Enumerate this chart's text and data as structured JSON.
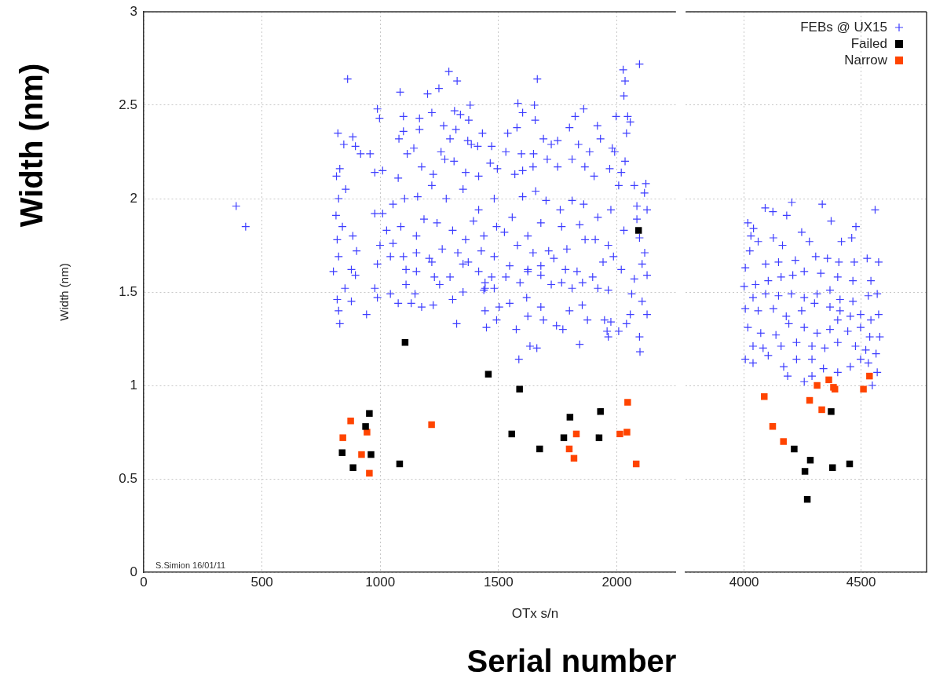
{
  "chart_data": [
    {
      "type": "scatter",
      "xlabel": "OTx s/n",
      "ylabel": "Width (nm)",
      "annotations": [
        "S.Simion 16/01/11",
        "Width (nm)",
        "Serial number"
      ],
      "xlim": [
        0,
        2250
      ],
      "ylim": [
        0,
        3
      ],
      "xticks": [
        0,
        500,
        1000,
        1500,
        2000
      ],
      "yticks": [
        0,
        0.5,
        1,
        1.5,
        2,
        2.5,
        3
      ],
      "grid": true,
      "series": [
        {
          "color": "#3d3dff",
          "marker": "cross",
          "x": [
            391,
            431,
            862,
            1084,
            1200,
            1248,
            1290,
            1325,
            1664,
            2027,
            2096,
            2035,
            2030,
            1860,
            1582,
            1652,
            1380,
            988,
            997,
            821,
            884,
            846,
            895,
            917,
            957,
            1098,
            1166,
            1218,
            1314,
            1339,
            1374,
            1268,
            1320,
            1098,
            1079,
            1166,
            1295,
            1370,
            1432,
            1539,
            1578,
            1602,
            1655,
            1824,
            1800,
            1918,
            1997,
            2046,
            2057,
            2041,
            1931,
            1690,
            1723,
            1750,
            1838,
            1981,
            1991,
            1885,
            1648,
            1597,
            1531,
            1471,
            1412,
            1385,
            1257,
            1142,
            1114,
            829,
            815,
            854,
            824,
            977,
            1010,
            1076,
            1175,
            1224,
            1273,
            1312,
            1361,
            1416,
            1465,
            1495,
            1569,
            1602,
            1646,
            1706,
            1750,
            1811,
            1865,
            1904,
            1970,
            2035,
            2019,
            2008,
            2074,
            2123,
            2117,
            2128,
            2085,
            813,
            840,
            818,
            884,
            900,
            824,
            802,
            878,
            895,
            851,
            818,
            878,
            824,
            829,
            942,
            977,
            1010,
            1054,
            1103,
            1158,
            1218,
            1279,
            1350,
            1416,
            1482,
            1027,
            1087,
            1153,
            1185,
            1240,
            1306,
            1361,
            1394,
            1438,
            1492,
            1525,
            1558,
            1602,
            1657,
            1701,
            1761,
            1811,
            1860,
            1920,
            1975,
            1843,
            1767,
            1679,
            1624,
            1580,
            1646,
            1712,
            1789,
            1866,
            1909,
            1964,
            2030,
            2085,
            2096,
            2118,
            2107,
            2128,
            2074,
            2019,
            1986,
            1942,
            1898,
            1832,
            1783,
            1734,
            1679,
            1624,
            1547,
            1482,
            1427,
            1372,
            1328,
            1262,
            1207,
            1153,
            1098,
            1043,
            988,
            999,
            1054,
            1109,
            1153,
            1218,
            1229,
            1295,
            1350,
            1416,
            1443,
            1471,
            1438,
            1482,
            1531,
            1591,
            1624,
            1679,
            1723,
            1767,
            1811,
            1855,
            1920,
            1964,
            2063,
            2107,
            2128,
            2096,
            2098,
            2057,
            2041,
            2008,
            1975,
            1964,
            1959,
            1948,
            1876,
            1843,
            1854,
            1800,
            1772,
            1745,
            1679,
            1690,
            1662,
            1633,
            1624,
            1619,
            1575,
            1586,
            1547,
            1503,
            1492,
            1449,
            1443,
            1443,
            1350,
            1306,
            1323,
            1224,
            1175,
            1131,
            1076,
            1043,
            988,
            977,
            1147,
            1251,
            1109
          ],
          "values": [
            1.96,
            1.85,
            2.64,
            2.57,
            2.56,
            2.59,
            2.68,
            2.63,
            2.64,
            2.69,
            2.72,
            2.63,
            2.55,
            2.48,
            2.51,
            2.5,
            2.5,
            2.48,
            2.43,
            2.35,
            2.33,
            2.29,
            2.28,
            2.24,
            2.24,
            2.44,
            2.43,
            2.46,
            2.47,
            2.45,
            2.42,
            2.39,
            2.37,
            2.36,
            2.32,
            2.37,
            2.32,
            2.31,
            2.35,
            2.35,
            2.38,
            2.46,
            2.42,
            2.44,
            2.38,
            2.39,
            2.44,
            2.44,
            2.41,
            2.35,
            2.32,
            2.32,
            2.29,
            2.31,
            2.29,
            2.27,
            2.25,
            2.25,
            2.24,
            2.24,
            2.25,
            2.28,
            2.28,
            2.29,
            2.25,
            2.27,
            2.24,
            2.16,
            2.12,
            2.05,
            2,
            2.14,
            2.15,
            2.11,
            2.17,
            2.13,
            2.21,
            2.2,
            2.14,
            2.12,
            2.19,
            2.16,
            2.13,
            2.15,
            2.17,
            2.21,
            2.17,
            2.21,
            2.17,
            2.12,
            2.16,
            2.2,
            2.14,
            2.07,
            2.07,
            2.08,
            2.03,
            1.94,
            1.96,
            1.91,
            1.85,
            1.78,
            1.8,
            1.72,
            1.69,
            1.61,
            1.62,
            1.59,
            1.52,
            1.46,
            1.45,
            1.4,
            1.33,
            1.38,
            1.92,
            1.92,
            1.97,
            2,
            2.01,
            2.07,
            2,
            2.05,
            1.94,
            2,
            1.83,
            1.85,
            1.8,
            1.89,
            1.87,
            1.83,
            1.78,
            1.88,
            1.8,
            1.85,
            1.82,
            1.9,
            2.01,
            2.04,
            1.99,
            1.94,
            1.99,
            1.97,
            1.9,
            1.94,
            1.86,
            1.85,
            1.87,
            1.8,
            1.75,
            1.71,
            1.72,
            1.73,
            1.78,
            1.78,
            1.75,
            1.83,
            1.89,
            1.79,
            1.71,
            1.65,
            1.59,
            1.57,
            1.62,
            1.69,
            1.66,
            1.58,
            1.61,
            1.62,
            1.68,
            1.64,
            1.61,
            1.64,
            1.69,
            1.72,
            1.66,
            1.71,
            1.73,
            1.68,
            1.71,
            1.69,
            1.69,
            1.65,
            1.75,
            1.76,
            1.62,
            1.61,
            1.66,
            1.58,
            1.58,
            1.65,
            1.61,
            1.55,
            1.58,
            1.51,
            1.52,
            1.58,
            1.55,
            1.62,
            1.59,
            1.54,
            1.55,
            1.52,
            1.55,
            1.52,
            1.51,
            1.49,
            1.45,
            1.38,
            1.26,
            1.18,
            1.38,
            1.33,
            1.29,
            1.34,
            1.26,
            1.29,
            1.35,
            1.35,
            1.22,
            1.43,
            1.4,
            1.3,
            1.32,
            1.42,
            1.35,
            1.2,
            1.21,
            1.37,
            1.47,
            1.3,
            1.14,
            1.44,
            1.42,
            1.35,
            1.31,
            1.4,
            1.52,
            1.5,
            1.46,
            1.33,
            1.43,
            1.42,
            1.44,
            1.44,
            1.49,
            1.47,
            1.52,
            1.49,
            1.54,
            1.54
          ]
        },
        {
          "color": "#000000",
          "marker": "square",
          "x": [
            1105,
            1457,
            1589,
            954,
            938,
            839,
            961,
            885,
            1082,
            1556,
            1674,
            1776,
            1802,
            1931,
            1925,
            2092
          ],
          "values": [
            1.23,
            1.06,
            0.98,
            0.85,
            0.78,
            0.64,
            0.63,
            0.56,
            0.58,
            0.74,
            0.66,
            0.72,
            0.83,
            0.86,
            0.72,
            1.83
          ]
        },
        {
          "color": "#ff4400",
          "marker": "square",
          "x": [
            875,
            842,
            944,
            921,
            954,
            1217,
            1829,
            1799,
            1819,
            2046,
            2013,
            2043,
            2082
          ],
          "values": [
            0.81,
            0.72,
            0.75,
            0.63,
            0.53,
            0.79,
            0.74,
            0.66,
            0.61,
            0.91,
            0.74,
            0.75,
            0.58
          ]
        }
      ]
    },
    {
      "type": "scatter",
      "xlim": [
        3750,
        4780
      ],
      "ylim": [
        0,
        3
      ],
      "xticks": [
        4000,
        4500
      ],
      "yticks": [
        0,
        0.5,
        1,
        1.5,
        2,
        2.5,
        3
      ],
      "grid": true,
      "tick_labels": "x",
      "legend": "top right",
      "series": [
        {
          "name": "FEBs @ UX15",
          "color": "#3d3dff",
          "marker": "cross",
          "x": [
            4090,
            4123,
            4182,
            4204,
            4334,
            4560,
            4016,
            4040,
            4029,
            4060,
            4125,
            4164,
            4246,
            4279,
            4372,
            4478,
            4416,
            4460,
            4024,
            4005,
            4092,
            4147,
            4219,
            4306,
            4356,
            4405,
            4471,
            4526,
            4575,
            4000,
            4049,
            4103,
            4158,
            4208,
            4257,
            4328,
            4400,
            4465,
            4542,
            4569,
            4531,
            4465,
            4410,
            4367,
            4312,
            4257,
            4202,
            4147,
            4092,
            4038,
            4005,
            4060,
            4125,
            4180,
            4246,
            4301,
            4367,
            4410,
            4454,
            4498,
            4542,
            4575,
            4016,
            4071,
            4136,
            4191,
            4257,
            4312,
            4367,
            4400,
            4443,
            4498,
            4537,
            4580,
            4038,
            4081,
            4158,
            4224,
            4290,
            4345,
            4400,
            4476,
            4520,
            4564,
            4005,
            4038,
            4103,
            4169,
            4224,
            4290,
            4339,
            4400,
            4454,
            4498,
            4531,
            4569,
            4186,
            4257,
            4290,
            4548
          ],
          "values": [
            1.95,
            1.93,
            1.91,
            1.98,
            1.97,
            1.94,
            1.87,
            1.84,
            1.8,
            1.77,
            1.79,
            1.75,
            1.82,
            1.77,
            1.88,
            1.85,
            1.77,
            1.79,
            1.72,
            1.63,
            1.65,
            1.66,
            1.67,
            1.69,
            1.68,
            1.66,
            1.66,
            1.68,
            1.66,
            1.53,
            1.54,
            1.56,
            1.58,
            1.59,
            1.61,
            1.6,
            1.58,
            1.56,
            1.56,
            1.49,
            1.48,
            1.45,
            1.46,
            1.51,
            1.49,
            1.47,
            1.49,
            1.48,
            1.49,
            1.47,
            1.41,
            1.4,
            1.41,
            1.37,
            1.4,
            1.44,
            1.42,
            1.4,
            1.37,
            1.38,
            1.35,
            1.38,
            1.31,
            1.28,
            1.27,
            1.33,
            1.31,
            1.28,
            1.3,
            1.35,
            1.29,
            1.31,
            1.26,
            1.26,
            1.21,
            1.2,
            1.21,
            1.23,
            1.21,
            1.2,
            1.23,
            1.21,
            1.19,
            1.17,
            1.14,
            1.12,
            1.16,
            1.1,
            1.14,
            1.14,
            1.09,
            1.07,
            1.1,
            1.14,
            1.12,
            1.07,
            1.05,
            1.02,
            1.05,
            1
          ]
        },
        {
          "name": "Failed",
          "color": "#000000",
          "marker": "square",
          "x": [
            4372,
            4214,
            4283,
            4260,
            4378,
            4451,
            4270
          ],
          "values": [
            0.86,
            0.66,
            0.6,
            0.54,
            0.56,
            0.58,
            0.39
          ]
        },
        {
          "name": "Narrow",
          "color": "#ff4400",
          "marker": "square",
          "x": [
            4086,
            4122,
            4168,
            4280,
            4332,
            4312,
            4362,
            4382,
            4388,
            4510,
            4536
          ],
          "values": [
            0.94,
            0.78,
            0.7,
            0.92,
            0.87,
            1,
            1.03,
            0.99,
            0.98,
            0.98,
            1.05
          ]
        }
      ]
    }
  ]
}
